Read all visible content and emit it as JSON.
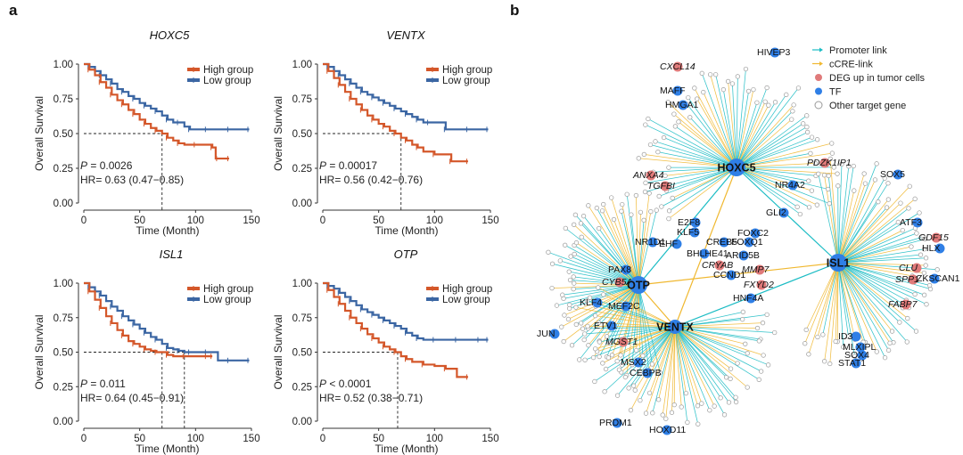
{
  "panels": {
    "a": "a",
    "b": "b"
  },
  "colors": {
    "high": "#d4572a",
    "low": "#3b66a3",
    "promoter": "#1bbcc4",
    "cre": "#f0b830",
    "deg": "#e07a7a",
    "tf": "#2f7fe6",
    "other_stroke": "#9a9a9a",
    "text": "#111111"
  },
  "chart_data": [
    {
      "type": "line",
      "title": "HOXC5",
      "title_italic": true,
      "xlabel": "Time (Month)",
      "ylabel": "Overall Survival",
      "xlim": [
        0,
        150
      ],
      "ylim": [
        0,
        1
      ],
      "xticks": [
        "0",
        "50",
        "100",
        "150"
      ],
      "yticks": [
        "0.00",
        "0.25",
        "0.50",
        "0.75",
        "1.00"
      ],
      "legend": [
        "High group",
        "Low group"
      ],
      "legend_position": "top-right",
      "median_time": [
        70
      ],
      "stats": {
        "p_prefix": "P",
        "p_text": " = 0.0026",
        "hr_text": "HR= 0.63 (0.47−0.85)"
      },
      "series": [
        {
          "name": "High group",
          "x": [
            0,
            5,
            10,
            15,
            20,
            25,
            30,
            35,
            40,
            45,
            50,
            55,
            60,
            65,
            70,
            75,
            80,
            85,
            90,
            100,
            110,
            115,
            118,
            120,
            125,
            130
          ],
          "y": [
            1.0,
            0.96,
            0.92,
            0.87,
            0.83,
            0.78,
            0.74,
            0.71,
            0.67,
            0.64,
            0.6,
            0.57,
            0.54,
            0.52,
            0.5,
            0.47,
            0.45,
            0.43,
            0.42,
            0.42,
            0.42,
            0.4,
            0.32,
            0.32,
            0.32,
            0.32
          ]
        },
        {
          "name": "Low group",
          "x": [
            0,
            5,
            10,
            15,
            20,
            25,
            30,
            35,
            40,
            45,
            50,
            55,
            60,
            65,
            70,
            75,
            80,
            85,
            90,
            95,
            100,
            110,
            120,
            130,
            140,
            148
          ],
          "y": [
            1.0,
            0.98,
            0.95,
            0.92,
            0.89,
            0.86,
            0.82,
            0.8,
            0.77,
            0.75,
            0.72,
            0.7,
            0.68,
            0.66,
            0.63,
            0.6,
            0.58,
            0.58,
            0.55,
            0.53,
            0.53,
            0.53,
            0.53,
            0.53,
            0.53,
            0.53
          ]
        }
      ]
    },
    {
      "type": "line",
      "title": "VENTX",
      "title_italic": true,
      "xlabel": "Time (Month)",
      "ylabel": "Overall Survival",
      "xlim": [
        0,
        150
      ],
      "ylim": [
        0,
        1
      ],
      "xticks": [
        "0",
        "50",
        "100",
        "150"
      ],
      "yticks": [
        "0.00",
        "0.25",
        "0.50",
        "0.75",
        "1.00"
      ],
      "legend": [
        "High group",
        "Low group"
      ],
      "legend_position": "top-right",
      "median_time": [
        70
      ],
      "stats": {
        "p_prefix": "P",
        "p_text": " = 0.00017",
        "hr_text": "HR= 0.56 (0.42−0.76)"
      },
      "series": [
        {
          "name": "High group",
          "x": [
            0,
            5,
            10,
            15,
            20,
            25,
            30,
            35,
            40,
            45,
            50,
            55,
            60,
            65,
            70,
            75,
            80,
            85,
            90,
            100,
            110,
            115,
            120,
            130
          ],
          "y": [
            1.0,
            0.95,
            0.9,
            0.85,
            0.8,
            0.75,
            0.71,
            0.67,
            0.63,
            0.6,
            0.57,
            0.55,
            0.52,
            0.5,
            0.47,
            0.45,
            0.42,
            0.4,
            0.37,
            0.35,
            0.35,
            0.3,
            0.3,
            0.3
          ]
        },
        {
          "name": "Low group",
          "x": [
            0,
            5,
            10,
            15,
            20,
            25,
            30,
            35,
            40,
            45,
            50,
            55,
            60,
            65,
            70,
            75,
            80,
            85,
            90,
            95,
            100,
            110,
            120,
            130,
            140,
            148
          ],
          "y": [
            1.0,
            0.98,
            0.95,
            0.92,
            0.89,
            0.86,
            0.83,
            0.8,
            0.78,
            0.76,
            0.74,
            0.72,
            0.7,
            0.68,
            0.66,
            0.64,
            0.62,
            0.6,
            0.58,
            0.58,
            0.58,
            0.53,
            0.53,
            0.53,
            0.53,
            0.53
          ]
        }
      ]
    },
    {
      "type": "line",
      "title": "ISL1",
      "title_italic": true,
      "xlabel": "Time (Month)",
      "ylabel": "Overall Survival",
      "xlim": [
        0,
        150
      ],
      "ylim": [
        0,
        1
      ],
      "xticks": [
        "0",
        "50",
        "100",
        "150"
      ],
      "yticks": [
        "0.00",
        "0.25",
        "0.50",
        "0.75",
        "1.00"
      ],
      "legend": [
        "High group",
        "Low group"
      ],
      "legend_position": "top-right",
      "median_time": [
        70,
        90
      ],
      "stats": {
        "p_prefix": "P",
        "p_text": " = 0.011",
        "hr_text": "HR= 0.64 (0.45−0.91)"
      },
      "series": [
        {
          "name": "High group",
          "x": [
            0,
            5,
            10,
            15,
            20,
            25,
            30,
            35,
            40,
            45,
            50,
            55,
            60,
            65,
            70,
            75,
            80,
            90,
            100,
            110,
            115
          ],
          "y": [
            1.0,
            0.94,
            0.88,
            0.82,
            0.76,
            0.71,
            0.66,
            0.62,
            0.58,
            0.56,
            0.54,
            0.52,
            0.51,
            0.5,
            0.5,
            0.48,
            0.47,
            0.47,
            0.47,
            0.47,
            0.47
          ]
        },
        {
          "name": "Low group",
          "x": [
            0,
            5,
            10,
            15,
            20,
            25,
            30,
            35,
            40,
            45,
            50,
            55,
            60,
            65,
            70,
            75,
            80,
            85,
            90,
            95,
            100,
            110,
            120,
            130,
            148
          ],
          "y": [
            1.0,
            0.97,
            0.94,
            0.91,
            0.87,
            0.83,
            0.8,
            0.76,
            0.73,
            0.7,
            0.67,
            0.64,
            0.61,
            0.59,
            0.56,
            0.53,
            0.52,
            0.51,
            0.5,
            0.5,
            0.5,
            0.5,
            0.44,
            0.44,
            0.44
          ]
        }
      ]
    },
    {
      "type": "line",
      "title": "OTP",
      "title_italic": true,
      "xlabel": "Time (Month)",
      "ylabel": "Overall Survival",
      "xlim": [
        0,
        150
      ],
      "ylim": [
        0,
        1
      ],
      "xticks": [
        "0",
        "50",
        "100",
        "150"
      ],
      "yticks": [
        "0.00",
        "0.25",
        "0.50",
        "0.75",
        "1.00"
      ],
      "legend": [
        "High group",
        "Low group"
      ],
      "legend_position": "top-right",
      "median_time": [
        67
      ],
      "stats": {
        "p_prefix": "P",
        "p_text": " < 0.0001",
        "hr_text": "HR= 0.52 (0.38−0.71)"
      },
      "series": [
        {
          "name": "High group",
          "x": [
            0,
            5,
            10,
            15,
            20,
            25,
            30,
            35,
            40,
            45,
            50,
            55,
            60,
            65,
            70,
            75,
            80,
            90,
            100,
            110,
            120,
            130
          ],
          "y": [
            1.0,
            0.95,
            0.9,
            0.85,
            0.8,
            0.75,
            0.71,
            0.67,
            0.63,
            0.6,
            0.57,
            0.54,
            0.52,
            0.5,
            0.47,
            0.45,
            0.43,
            0.41,
            0.4,
            0.38,
            0.32,
            0.32
          ]
        },
        {
          "name": "Low group",
          "x": [
            0,
            5,
            10,
            15,
            20,
            25,
            30,
            35,
            40,
            45,
            50,
            55,
            60,
            65,
            70,
            75,
            80,
            85,
            90,
            100,
            110,
            120,
            130,
            140,
            148
          ],
          "y": [
            1.0,
            0.98,
            0.96,
            0.93,
            0.9,
            0.87,
            0.84,
            0.81,
            0.79,
            0.77,
            0.75,
            0.73,
            0.71,
            0.69,
            0.67,
            0.64,
            0.62,
            0.6,
            0.59,
            0.59,
            0.59,
            0.59,
            0.59,
            0.59,
            0.59
          ]
        }
      ]
    }
  ],
  "network": {
    "legend": [
      {
        "label": "Promoter link",
        "kind": "promoter"
      },
      {
        "label": "cCRE-link",
        "kind": "cre"
      },
      {
        "label": "DEG up in tumor cells",
        "kind": "deg"
      },
      {
        "label": "TF",
        "kind": "tf"
      },
      {
        "label": "Other target gene",
        "kind": "other"
      }
    ],
    "hubs": [
      "HOXC5",
      "OTP",
      "VENTX",
      "ISL1"
    ],
    "labels": [
      {
        "text": "CXCL14",
        "italic": true
      },
      {
        "text": "HIVEP3"
      },
      {
        "text": "MAFF"
      },
      {
        "text": "HMGA1"
      },
      {
        "text": "ANXA4",
        "italic": true
      },
      {
        "text": "TGFBI",
        "italic": true
      },
      {
        "text": "PDZK1IP1",
        "italic": true
      },
      {
        "text": "NR4A2"
      },
      {
        "text": "SOX5"
      },
      {
        "text": "GLI2"
      },
      {
        "text": "E2F8"
      },
      {
        "text": "KLF5"
      },
      {
        "text": "NR1D1"
      },
      {
        "text": "EHF"
      },
      {
        "text": "CREB5"
      },
      {
        "text": "FOXQ1"
      },
      {
        "text": "FOXC2"
      },
      {
        "text": "BHLHE41"
      },
      {
        "text": "ARID5B"
      },
      {
        "text": "CRYAB",
        "italic": true
      },
      {
        "text": "CCND1"
      },
      {
        "text": "MMP7",
        "italic": true
      },
      {
        "text": "ATF3"
      },
      {
        "text": "GDF15",
        "italic": true
      },
      {
        "text": "HLX"
      },
      {
        "text": "PAX8"
      },
      {
        "text": "CYB5A",
        "italic": true
      },
      {
        "text": "FXYD2",
        "italic": true
      },
      {
        "text": "HNF4A"
      },
      {
        "text": "CLU",
        "italic": true
      },
      {
        "text": "SPP1",
        "italic": true
      },
      {
        "text": "ZKSCAN1"
      },
      {
        "text": "KLF4"
      },
      {
        "text": "MEF2C"
      },
      {
        "text": "FABP7",
        "italic": true
      },
      {
        "text": "ETV1"
      },
      {
        "text": "JUN"
      },
      {
        "text": "MGST1",
        "italic": true
      },
      {
        "text": "ID3"
      },
      {
        "text": "MLXIPL"
      },
      {
        "text": "SOX4"
      },
      {
        "text": "STAT1"
      },
      {
        "text": "MSX2"
      },
      {
        "text": "CEBPB"
      },
      {
        "text": "PRDM1"
      },
      {
        "text": "HOXD11"
      }
    ]
  }
}
